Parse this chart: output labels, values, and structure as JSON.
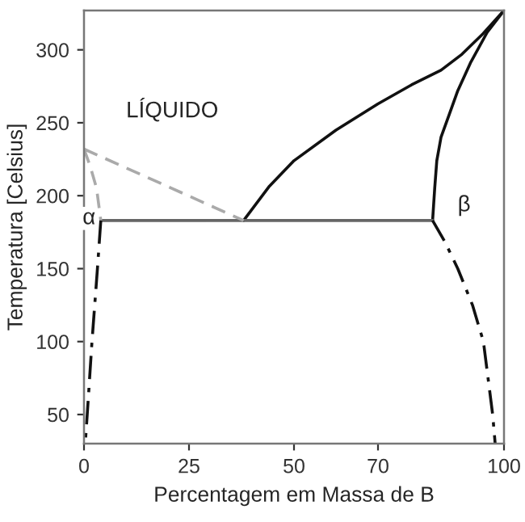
{
  "chart_data": {
    "type": "line",
    "xlabel": "Percentagem em Massa de B",
    "ylabel": "Temperatura [Celsius]",
    "xlim": [
      0,
      100
    ],
    "ylim": [
      30,
      327
    ],
    "xticks": [
      0,
      25,
      50,
      70,
      100
    ],
    "yticks": [
      50,
      100,
      150,
      200,
      250,
      300
    ],
    "grid": false,
    "legend": false,
    "marker": "none",
    "series": [
      {
        "color": "#111111",
        "line_style": "solid",
        "x": [
          38,
          44,
          50,
          60,
          70,
          78,
          85,
          90,
          95,
          100
        ],
        "values": [
          183,
          206,
          224,
          245,
          263,
          276,
          286,
          297,
          311,
          327
        ]
      },
      {
        "color": "#111111",
        "line_style": "solid",
        "x": [
          83,
          83.5,
          84,
          85,
          87,
          89,
          92,
          96,
          100
        ],
        "values": [
          183,
          205,
          224,
          240,
          256,
          272,
          291,
          312,
          327
        ]
      },
      {
        "color": "#666666",
        "line_style": "solid",
        "x": [
          4,
          83
        ],
        "values": [
          183,
          183
        ]
      },
      {
        "color": "#aaaaaa",
        "line_style": "dashed",
        "x": [
          0,
          38
        ],
        "values": [
          232,
          183
        ]
      },
      {
        "color": "#aaaaaa",
        "line_style": "dashed",
        "x": [
          0,
          1.5,
          3,
          4
        ],
        "values": [
          232,
          220,
          205,
          183
        ]
      },
      {
        "color": "#111111",
        "line_style": "dashdot",
        "x": [
          4,
          3.2,
          1.9,
          1,
          0.3
        ],
        "values": [
          183,
          150,
          100,
          60,
          30
        ]
      },
      {
        "color": "#111111",
        "line_style": "dashdot",
        "x": [
          83,
          86,
          89,
          92.5,
          95.1,
          97.3,
          97.9
        ],
        "values": [
          183,
          168,
          150,
          125,
          100,
          50,
          30
        ]
      }
    ],
    "annotations": [
      "LÍQUIDO",
      "α",
      "β"
    ]
  }
}
